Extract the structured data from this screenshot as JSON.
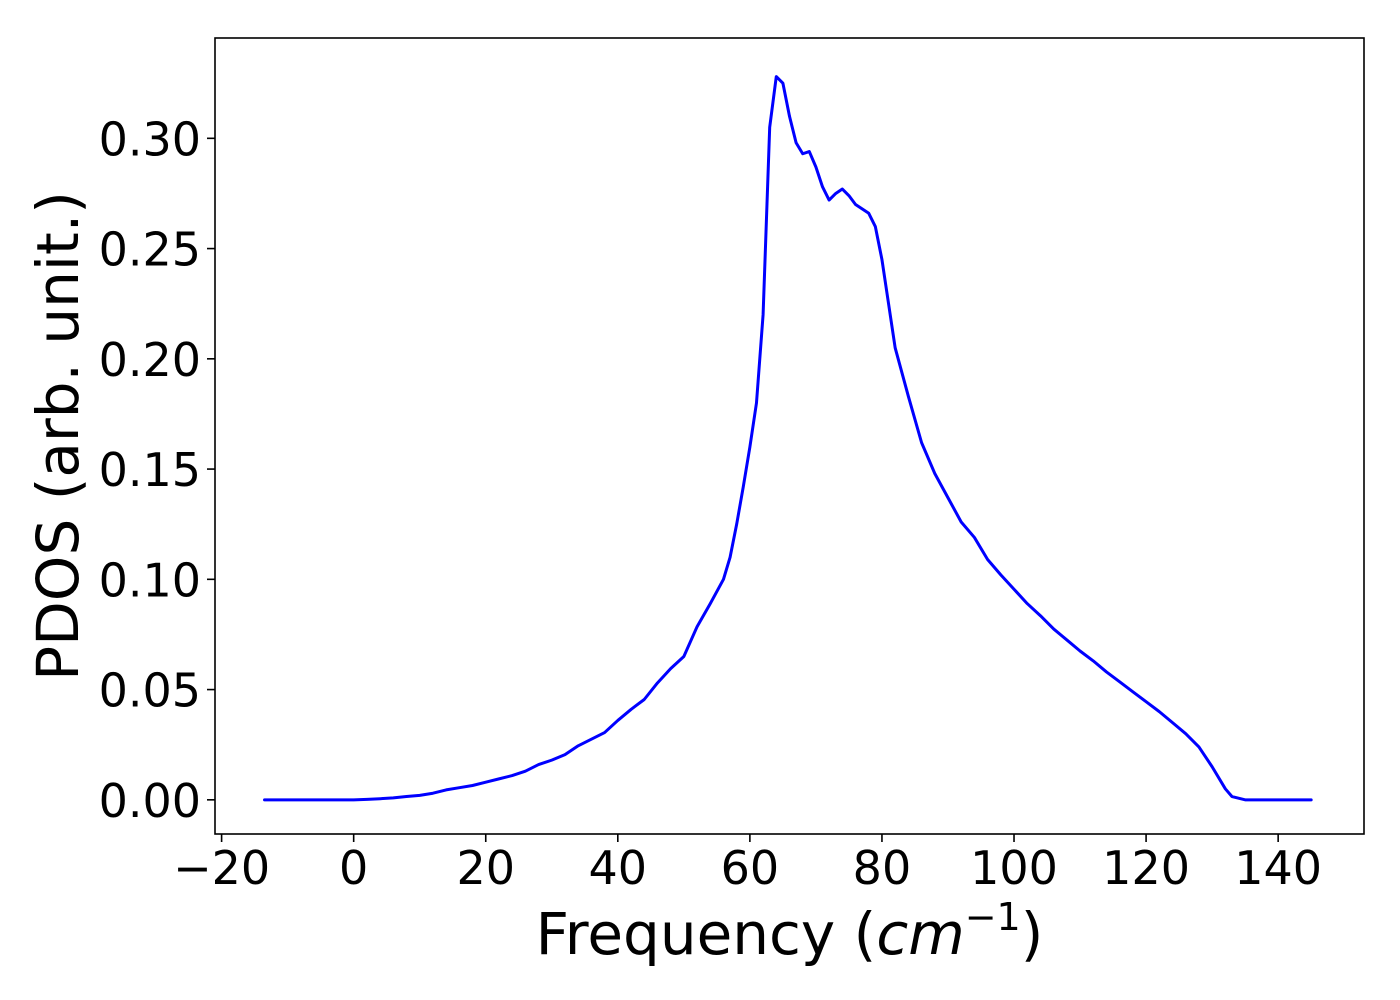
{
  "chart_data": {
    "type": "line",
    "title": "",
    "xlabel_parts": {
      "prefix": "Frequency (",
      "unit": "cm",
      "superscript": "−1",
      "suffix": ")"
    },
    "ylabel": "PDOS (arb. unit.)",
    "xlim": [
      -21,
      153
    ],
    "ylim": [
      -0.0155,
      0.3455
    ],
    "xticks": [
      -20,
      0,
      20,
      40,
      60,
      80,
      100,
      120,
      140
    ],
    "xtick_labels": [
      "−20",
      "0",
      "20",
      "40",
      "60",
      "80",
      "100",
      "120",
      "140"
    ],
    "yticks": [
      0.0,
      0.05,
      0.1,
      0.15,
      0.2,
      0.25,
      0.3
    ],
    "ytick_labels": [
      "0.00",
      "0.05",
      "0.10",
      "0.15",
      "0.20",
      "0.25",
      "0.30"
    ],
    "grid": false,
    "legend": "none",
    "colors": {
      "line": "#0000ff",
      "axes": "#000000",
      "background": "#ffffff"
    },
    "series": [
      {
        "color": "#0000ff",
        "points": [
          [
            -13.5,
            0.0
          ],
          [
            0,
            0.0
          ],
          [
            2,
            0.0002
          ],
          [
            4,
            0.0005
          ],
          [
            6,
            0.0009
          ],
          [
            8,
            0.0015
          ],
          [
            10,
            0.002
          ],
          [
            12,
            0.003
          ],
          [
            14,
            0.0045
          ],
          [
            16,
            0.0055
          ],
          [
            18,
            0.0065
          ],
          [
            20,
            0.008
          ],
          [
            22,
            0.0095
          ],
          [
            24,
            0.011
          ],
          [
            26,
            0.013
          ],
          [
            28,
            0.016
          ],
          [
            30,
            0.018
          ],
          [
            32,
            0.0205
          ],
          [
            34,
            0.0245
          ],
          [
            36,
            0.0275
          ],
          [
            38,
            0.0305
          ],
          [
            40,
            0.036
          ],
          [
            42,
            0.041
          ],
          [
            44,
            0.0455
          ],
          [
            46,
            0.053
          ],
          [
            48,
            0.0595
          ],
          [
            50,
            0.065
          ],
          [
            52,
            0.0785
          ],
          [
            54,
            0.089
          ],
          [
            56,
            0.1
          ],
          [
            57,
            0.11
          ],
          [
            58,
            0.125
          ],
          [
            59,
            0.142
          ],
          [
            60,
            0.16
          ],
          [
            61,
            0.18
          ],
          [
            62,
            0.22
          ],
          [
            63,
            0.305
          ],
          [
            64,
            0.328
          ],
          [
            65,
            0.325
          ],
          [
            66,
            0.31
          ],
          [
            67,
            0.298
          ],
          [
            68,
            0.293
          ],
          [
            69,
            0.294
          ],
          [
            70,
            0.287
          ],
          [
            71,
            0.278
          ],
          [
            72,
            0.272
          ],
          [
            73,
            0.275
          ],
          [
            74,
            0.277
          ],
          [
            75,
            0.274
          ],
          [
            76,
            0.27
          ],
          [
            77,
            0.268
          ],
          [
            78,
            0.266
          ],
          [
            79,
            0.26
          ],
          [
            80,
            0.245
          ],
          [
            81,
            0.225
          ],
          [
            82,
            0.205
          ],
          [
            84,
            0.183
          ],
          [
            86,
            0.162
          ],
          [
            88,
            0.148
          ],
          [
            90,
            0.137
          ],
          [
            92,
            0.126
          ],
          [
            94,
            0.119
          ],
          [
            96,
            0.109
          ],
          [
            98,
            0.102
          ],
          [
            100,
            0.0955
          ],
          [
            102,
            0.089
          ],
          [
            104,
            0.0835
          ],
          [
            106,
            0.0775
          ],
          [
            108,
            0.0725
          ],
          [
            110,
            0.0675
          ],
          [
            112,
            0.063
          ],
          [
            114,
            0.058
          ],
          [
            116,
            0.0535
          ],
          [
            118,
            0.049
          ],
          [
            120,
            0.0445
          ],
          [
            122,
            0.04
          ],
          [
            124,
            0.035
          ],
          [
            126,
            0.03
          ],
          [
            128,
            0.024
          ],
          [
            130,
            0.015
          ],
          [
            132,
            0.005
          ],
          [
            133,
            0.0015
          ],
          [
            135,
            0.0
          ],
          [
            145,
            0.0
          ]
        ]
      }
    ]
  }
}
